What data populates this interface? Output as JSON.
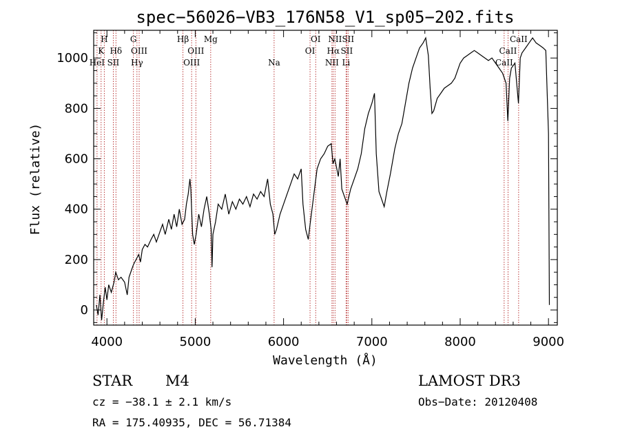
{
  "chart_data": {
    "type": "line",
    "title": "spec−56026−VB3_176N58_V1_sp05−202.fits",
    "xlabel": "Wavelength (Å)",
    "ylabel": "Flux (relative)",
    "xlim": [
      3850,
      9100
    ],
    "ylim": [
      -60,
      1110
    ],
    "x_ticks": [
      4000,
      5000,
      6000,
      7000,
      8000,
      9000
    ],
    "y_ticks": [
      0,
      200,
      400,
      600,
      800,
      1000
    ],
    "grid": false,
    "series": [
      {
        "name": "spectrum",
        "points": [
          [
            3880,
            20
          ],
          [
            3900,
            -20
          ],
          [
            3920,
            60
          ],
          [
            3940,
            -40
          ],
          [
            3960,
            30
          ],
          [
            3980,
            90
          ],
          [
            4000,
            40
          ],
          [
            4020,
            100
          ],
          [
            4050,
            70
          ],
          [
            4080,
            110
          ],
          [
            4100,
            150
          ],
          [
            4130,
            120
          ],
          [
            4160,
            130
          ],
          [
            4200,
            110
          ],
          [
            4230,
            60
          ],
          [
            4250,
            130
          ],
          [
            4280,
            160
          ],
          [
            4300,
            180
          ],
          [
            4330,
            200
          ],
          [
            4360,
            220
          ],
          [
            4380,
            190
          ],
          [
            4400,
            240
          ],
          [
            4430,
            260
          ],
          [
            4460,
            250
          ],
          [
            4500,
            280
          ],
          [
            4530,
            300
          ],
          [
            4560,
            270
          ],
          [
            4600,
            310
          ],
          [
            4630,
            340
          ],
          [
            4660,
            300
          ],
          [
            4700,
            360
          ],
          [
            4730,
            320
          ],
          [
            4760,
            380
          ],
          [
            4790,
            330
          ],
          [
            4820,
            400
          ],
          [
            4850,
            340
          ],
          [
            4880,
            360
          ],
          [
            4900,
            420
          ],
          [
            4920,
            460
          ],
          [
            4940,
            520
          ],
          [
            4950,
            480
          ],
          [
            4970,
            300
          ],
          [
            4990,
            260
          ],
          [
            5010,
            300
          ],
          [
            5040,
            380
          ],
          [
            5070,
            330
          ],
          [
            5100,
            400
          ],
          [
            5130,
            450
          ],
          [
            5160,
            380
          ],
          [
            5180,
            320
          ],
          [
            5190,
            170
          ],
          [
            5200,
            300
          ],
          [
            5230,
            350
          ],
          [
            5260,
            420
          ],
          [
            5300,
            400
          ],
          [
            5340,
            460
          ],
          [
            5380,
            380
          ],
          [
            5420,
            430
          ],
          [
            5460,
            400
          ],
          [
            5500,
            440
          ],
          [
            5540,
            420
          ],
          [
            5580,
            450
          ],
          [
            5620,
            410
          ],
          [
            5660,
            460
          ],
          [
            5700,
            440
          ],
          [
            5740,
            470
          ],
          [
            5780,
            450
          ],
          [
            5820,
            520
          ],
          [
            5850,
            420
          ],
          [
            5880,
            380
          ],
          [
            5900,
            300
          ],
          [
            5920,
            320
          ],
          [
            5960,
            380
          ],
          [
            6000,
            420
          ],
          [
            6040,
            460
          ],
          [
            6080,
            500
          ],
          [
            6120,
            540
          ],
          [
            6160,
            520
          ],
          [
            6200,
            560
          ],
          [
            6220,
            420
          ],
          [
            6250,
            320
          ],
          [
            6280,
            280
          ],
          [
            6300,
            340
          ],
          [
            6340,
            450
          ],
          [
            6380,
            560
          ],
          [
            6420,
            600
          ],
          [
            6460,
            620
          ],
          [
            6500,
            650
          ],
          [
            6540,
            660
          ],
          [
            6560,
            580
          ],
          [
            6580,
            600
          ],
          [
            6620,
            530
          ],
          [
            6640,
            600
          ],
          [
            6660,
            480
          ],
          [
            6700,
            440
          ],
          [
            6720,
            420
          ],
          [
            6760,
            480
          ],
          [
            6800,
            520
          ],
          [
            6840,
            560
          ],
          [
            6880,
            620
          ],
          [
            6920,
            720
          ],
          [
            6960,
            780
          ],
          [
            7000,
            820
          ],
          [
            7030,
            860
          ],
          [
            7050,
            620
          ],
          [
            7080,
            470
          ],
          [
            7110,
            440
          ],
          [
            7140,
            410
          ],
          [
            7170,
            470
          ],
          [
            7210,
            540
          ],
          [
            7260,
            640
          ],
          [
            7300,
            700
          ],
          [
            7340,
            740
          ],
          [
            7380,
            820
          ],
          [
            7420,
            900
          ],
          [
            7460,
            960
          ],
          [
            7500,
            1000
          ],
          [
            7540,
            1040
          ],
          [
            7580,
            1060
          ],
          [
            7610,
            1080
          ],
          [
            7640,
            1010
          ],
          [
            7660,
            880
          ],
          [
            7680,
            780
          ],
          [
            7700,
            790
          ],
          [
            7740,
            840
          ],
          [
            7780,
            860
          ],
          [
            7820,
            880
          ],
          [
            7860,
            890
          ],
          [
            7900,
            900
          ],
          [
            7940,
            920
          ],
          [
            7980,
            960
          ],
          [
            8000,
            980
          ],
          [
            8040,
            1000
          ],
          [
            8080,
            1010
          ],
          [
            8120,
            1020
          ],
          [
            8160,
            1030
          ],
          [
            8200,
            1020
          ],
          [
            8240,
            1010
          ],
          [
            8280,
            1000
          ],
          [
            8320,
            990
          ],
          [
            8360,
            1000
          ],
          [
            8400,
            980
          ],
          [
            8440,
            960
          ],
          [
            8480,
            940
          ],
          [
            8500,
            920
          ],
          [
            8520,
            900
          ],
          [
            8540,
            750
          ],
          [
            8560,
            920
          ],
          [
            8580,
            960
          ],
          [
            8620,
            980
          ],
          [
            8660,
            820
          ],
          [
            8680,
            1000
          ],
          [
            8700,
            1020
          ],
          [
            8740,
            1040
          ],
          [
            8780,
            1060
          ],
          [
            8820,
            1080
          ],
          [
            8860,
            1060
          ],
          [
            8900,
            1050
          ],
          [
            8940,
            1040
          ],
          [
            8970,
            1030
          ],
          [
            9000,
            700
          ],
          [
            9010,
            20
          ]
        ]
      }
    ],
    "spectral_lines": [
      {
        "wavelength": 3934,
        "label": "K",
        "row": 1
      },
      {
        "wavelength": 3888,
        "label": "HeI",
        "row": 2
      },
      {
        "wavelength": 3970,
        "label": "H",
        "row": 0
      },
      {
        "wavelength": 4072,
        "label": "SII",
        "row": 2
      },
      {
        "wavelength": 4102,
        "label": "Hδ",
        "row": 1
      },
      {
        "wavelength": 4300,
        "label": "G",
        "row": 0
      },
      {
        "wavelength": 4340,
        "label": "Hγ",
        "row": 2
      },
      {
        "wavelength": 4365,
        "label": "OIII",
        "row": 1
      },
      {
        "wavelength": 4861,
        "label": "Hβ",
        "row": 0
      },
      {
        "wavelength": 4959,
        "label": "OIII",
        "row": 2
      },
      {
        "wavelength": 5007,
        "label": "OIII",
        "row": 1
      },
      {
        "wavelength": 5175,
        "label": "Mg",
        "row": 0
      },
      {
        "wavelength": 5893,
        "label": "Na",
        "row": 2
      },
      {
        "wavelength": 6300,
        "label": "OI",
        "row": 1
      },
      {
        "wavelength": 6364,
        "label": "OI",
        "row": 0
      },
      {
        "wavelength": 6548,
        "label": "NII",
        "row": 2
      },
      {
        "wavelength": 6563,
        "label": "Hα",
        "row": 1
      },
      {
        "wavelength": 6583,
        "label": "NII",
        "row": 0
      },
      {
        "wavelength": 6708,
        "label": "Li",
        "row": 2
      },
      {
        "wavelength": 6716,
        "label": "SII",
        "row": 1
      },
      {
        "wavelength": 6731,
        "label": "SII",
        "row": 0
      },
      {
        "wavelength": 8498,
        "label": "CaII",
        "row": 2
      },
      {
        "wavelength": 8542,
        "label": "CaII",
        "row": 1
      },
      {
        "wavelength": 8662,
        "label": "CaII",
        "row": 0
      }
    ]
  },
  "info": {
    "class": "STAR",
    "subclass": "M4",
    "cz": "cz = −38.1 ± 2.1 km/s",
    "radec": "RA = 175.40935, DEC =  56.71384",
    "survey": "LAMOST DR3",
    "obs_date": "Obs−Date: 20120408"
  },
  "colors": {
    "spectrum": "#000000",
    "line_marker": "#b22222",
    "axis": "#000000"
  }
}
